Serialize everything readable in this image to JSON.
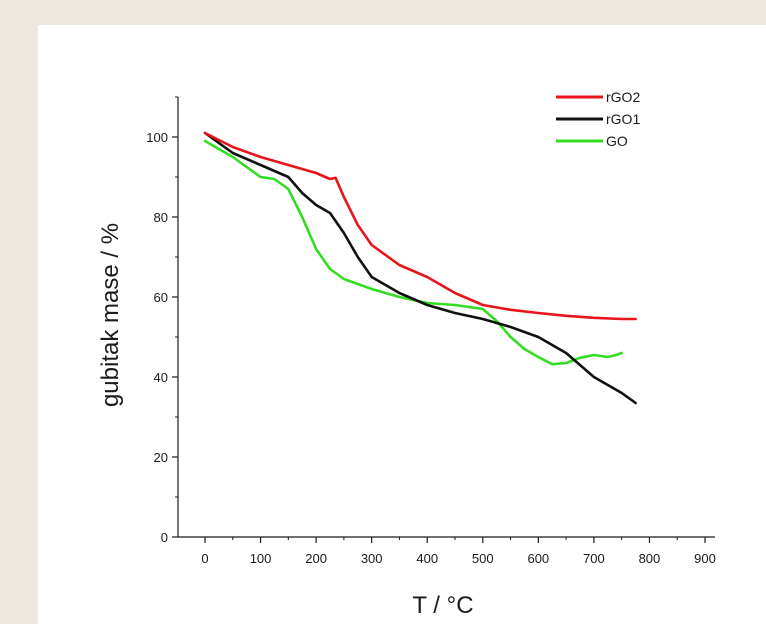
{
  "chart_data": {
    "type": "line",
    "xlabel": "T / °C",
    "ylabel": "gubitak mase / %",
    "xlim": [
      0,
      900
    ],
    "ylim": [
      0,
      110
    ],
    "x_ticks": [
      0,
      100,
      200,
      300,
      400,
      500,
      600,
      700,
      800,
      900
    ],
    "y_ticks": [
      0,
      20,
      40,
      60,
      80,
      100
    ],
    "grid": false,
    "legend_position": "top-right",
    "series": [
      {
        "name": "rGO2",
        "color": "#e8141c",
        "points": [
          [
            0,
            101
          ],
          [
            50,
            97.5
          ],
          [
            100,
            95
          ],
          [
            150,
            93
          ],
          [
            200,
            91
          ],
          [
            225,
            89.5
          ],
          [
            235,
            89.8
          ],
          [
            250,
            85
          ],
          [
            275,
            78
          ],
          [
            300,
            73
          ],
          [
            350,
            68
          ],
          [
            400,
            65
          ],
          [
            450,
            61
          ],
          [
            500,
            58
          ],
          [
            550,
            56.8
          ],
          [
            600,
            56
          ],
          [
            650,
            55.3
          ],
          [
            700,
            54.8
          ],
          [
            750,
            54.5
          ],
          [
            775,
            54.5
          ]
        ]
      },
      {
        "name": "rGO1",
        "color": "#111111",
        "points": [
          [
            0,
            101
          ],
          [
            50,
            96
          ],
          [
            100,
            93
          ],
          [
            150,
            90
          ],
          [
            175,
            86
          ],
          [
            200,
            83
          ],
          [
            225,
            81
          ],
          [
            250,
            76
          ],
          [
            275,
            70
          ],
          [
            300,
            65
          ],
          [
            350,
            61
          ],
          [
            400,
            58
          ],
          [
            450,
            56
          ],
          [
            500,
            54.5
          ],
          [
            550,
            52.5
          ],
          [
            600,
            50
          ],
          [
            650,
            46
          ],
          [
            700,
            40
          ],
          [
            750,
            36
          ],
          [
            775,
            33.5
          ]
        ]
      },
      {
        "name": "GO",
        "color": "#33dd22",
        "points": [
          [
            0,
            99
          ],
          [
            50,
            95
          ],
          [
            100,
            90
          ],
          [
            125,
            89.5
          ],
          [
            150,
            87
          ],
          [
            175,
            80
          ],
          [
            200,
            72
          ],
          [
            225,
            67
          ],
          [
            250,
            64.5
          ],
          [
            300,
            62
          ],
          [
            350,
            60
          ],
          [
            400,
            58.5
          ],
          [
            450,
            58
          ],
          [
            500,
            57
          ],
          [
            525,
            54
          ],
          [
            550,
            50
          ],
          [
            575,
            47
          ],
          [
            600,
            45
          ],
          [
            625,
            43.2
          ],
          [
            650,
            43.5
          ],
          [
            675,
            44.8
          ],
          [
            700,
            45.5
          ],
          [
            725,
            45
          ],
          [
            740,
            45.5
          ],
          [
            750,
            46
          ]
        ]
      }
    ]
  }
}
